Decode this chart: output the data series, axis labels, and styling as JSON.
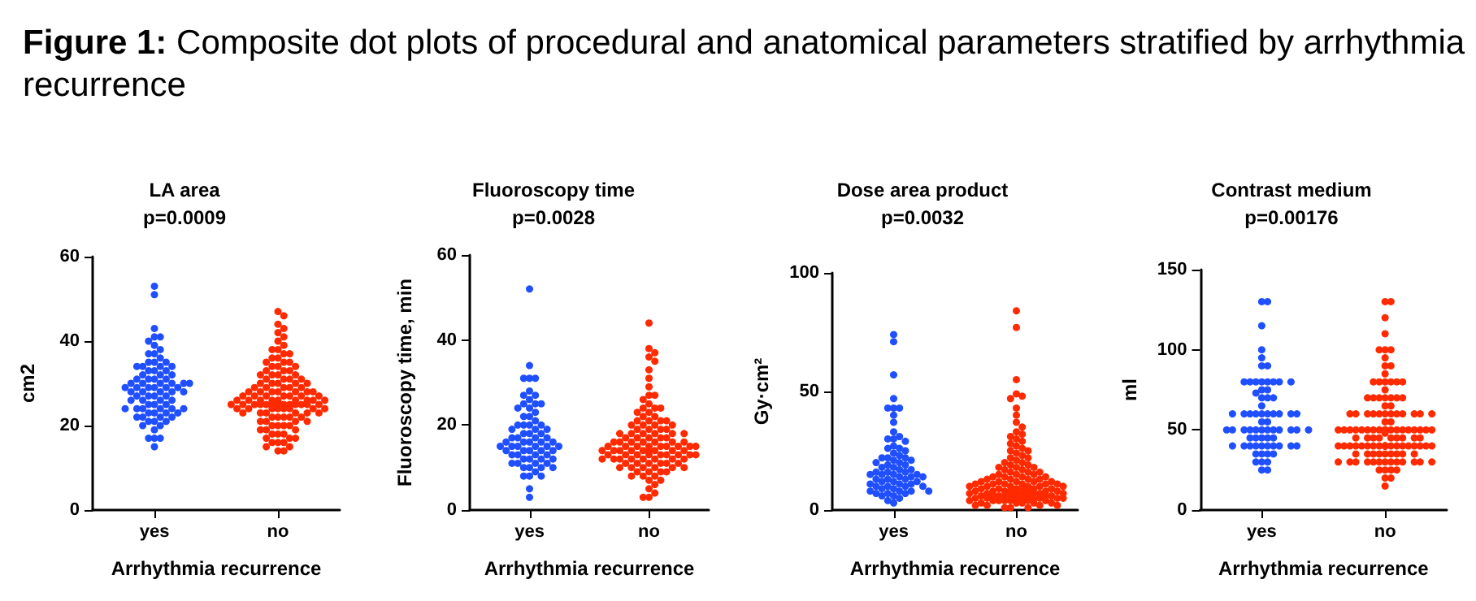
{
  "chart_data": [
    {
      "type": "scatter",
      "title": "LA area",
      "subtitle": "p=0.0009",
      "annotations": [
        "Figure 1: Composite dot plots of procedural and anatomical parameters stratified by arrhythmia recurrence"
      ],
      "xlabel": "Arrhythmia recurrence",
      "ylabel": "cm2",
      "categories": [
        "yes",
        "no"
      ],
      "ylim": [
        0,
        60
      ],
      "yticks": [
        0,
        20,
        40,
        60
      ],
      "marker": "circle",
      "series": [
        {
          "color": "#1f4fff",
          "x": [
            "yes",
            "yes",
            "yes",
            "yes",
            "yes",
            "yes",
            "yes",
            "yes",
            "yes",
            "yes",
            "yes",
            "yes",
            "yes",
            "yes",
            "yes",
            "yes",
            "yes",
            "yes",
            "yes",
            "yes",
            "yes",
            "yes",
            "yes",
            "yes",
            "yes",
            "yes",
            "yes",
            "yes",
            "yes",
            "yes",
            "yes",
            "yes",
            "yes",
            "yes",
            "yes",
            "yes",
            "yes",
            "yes",
            "yes",
            "yes",
            "yes",
            "yes",
            "yes",
            "yes",
            "yes",
            "yes",
            "yes",
            "yes",
            "yes",
            "yes",
            "yes",
            "yes",
            "yes",
            "yes",
            "yes",
            "yes",
            "yes",
            "yes",
            "yes",
            "yes",
            "yes",
            "yes",
            "yes",
            "yes",
            "yes",
            "yes",
            "yes",
            "yes",
            "yes",
            "yes",
            "yes",
            "yes",
            "yes",
            "yes",
            "yes",
            "yes",
            "yes",
            "yes",
            "yes",
            "yes"
          ],
          "values": [
            53,
            51,
            43,
            41,
            41,
            40,
            39,
            38,
            37,
            37,
            36,
            35,
            35,
            35,
            34,
            34,
            34,
            34,
            33,
            33,
            33,
            32,
            32,
            32,
            31,
            31,
            31,
            31,
            30,
            30,
            30,
            30,
            30,
            29,
            29,
            29,
            29,
            29,
            29,
            28,
            28,
            28,
            28,
            28,
            27,
            27,
            27,
            26,
            26,
            26,
            26,
            25,
            25,
            25,
            24,
            24,
            24,
            24,
            24,
            24,
            23,
            23,
            23,
            22,
            22,
            22,
            21,
            21,
            21,
            20,
            20,
            19,
            17,
            17,
            17,
            15,
            22,
            23,
            27,
            30
          ]
        },
        {
          "color": "#ff2a00",
          "x": [
            "no",
            "no",
            "no",
            "no",
            "no",
            "no",
            "no",
            "no",
            "no",
            "no",
            "no",
            "no",
            "no",
            "no",
            "no",
            "no",
            "no",
            "no",
            "no",
            "no",
            "no",
            "no",
            "no",
            "no",
            "no",
            "no",
            "no",
            "no",
            "no",
            "no",
            "no",
            "no",
            "no",
            "no",
            "no",
            "no",
            "no",
            "no",
            "no",
            "no",
            "no",
            "no",
            "no",
            "no",
            "no",
            "no",
            "no",
            "no",
            "no",
            "no",
            "no",
            "no",
            "no",
            "no",
            "no",
            "no",
            "no",
            "no",
            "no",
            "no",
            "no",
            "no",
            "no",
            "no",
            "no",
            "no",
            "no",
            "no",
            "no",
            "no",
            "no",
            "no",
            "no",
            "no",
            "no",
            "no",
            "no",
            "no",
            "no",
            "no",
            "no",
            "no",
            "no",
            "no",
            "no",
            "no",
            "no",
            "no",
            "no",
            "no",
            "no",
            "no",
            "no",
            "no",
            "no",
            "no",
            "no",
            "no",
            "no",
            "no",
            "no",
            "no",
            "no",
            "no",
            "no",
            "no",
            "no",
            "no",
            "no",
            "no",
            "no",
            "no",
            "no",
            "no",
            "no",
            "no",
            "no",
            "no",
            "no",
            "no"
          ],
          "values": [
            47,
            46,
            44,
            43,
            42,
            41,
            40,
            39,
            38,
            38,
            37,
            37,
            36,
            36,
            35,
            35,
            35,
            34,
            34,
            34,
            33,
            33,
            33,
            32,
            32,
            32,
            32,
            31,
            31,
            31,
            31,
            30,
            30,
            30,
            30,
            30,
            29,
            29,
            29,
            29,
            29,
            28,
            28,
            28,
            28,
            28,
            28,
            27,
            27,
            27,
            27,
            27,
            27,
            26,
            26,
            26,
            26,
            26,
            26,
            26,
            25,
            25,
            25,
            25,
            25,
            25,
            25,
            25,
            25,
            25,
            25,
            24,
            24,
            24,
            24,
            24,
            24,
            24,
            23,
            23,
            23,
            23,
            23,
            23,
            22,
            22,
            22,
            22,
            22,
            21,
            21,
            21,
            21,
            20,
            20,
            20,
            20,
            19,
            19,
            19,
            18,
            18,
            18,
            17,
            17,
            17,
            16,
            16,
            16,
            15,
            15,
            14,
            14,
            26,
            25,
            24,
            27,
            28,
            25,
            26
          ]
        }
      ]
    },
    {
      "type": "scatter",
      "title": "Fluoroscopy time",
      "subtitle": "p=0.0028",
      "xlabel": "Arrhythmia recurrence",
      "ylabel": "Fluoroscopy time, min",
      "categories": [
        "yes",
        "no"
      ],
      "ylim": [
        0,
        60
      ],
      "yticks": [
        0,
        20,
        40,
        60
      ],
      "marker": "circle",
      "series": [
        {
          "color": "#1f4fff",
          "x": [
            "yes",
            "yes",
            "yes",
            "yes",
            "yes",
            "yes",
            "yes",
            "yes",
            "yes",
            "yes",
            "yes",
            "yes",
            "yes",
            "yes",
            "yes",
            "yes",
            "yes",
            "yes",
            "yes",
            "yes",
            "yes",
            "yes",
            "yes",
            "yes",
            "yes",
            "yes",
            "yes",
            "yes",
            "yes",
            "yes",
            "yes",
            "yes",
            "yes",
            "yes",
            "yes",
            "yes",
            "yes",
            "yes",
            "yes",
            "yes",
            "yes",
            "yes",
            "yes",
            "yes",
            "yes",
            "yes",
            "yes",
            "yes",
            "yes",
            "yes",
            "yes",
            "yes",
            "yes",
            "yes",
            "yes",
            "yes",
            "yes",
            "yes",
            "yes",
            "yes",
            "yes",
            "yes",
            "yes",
            "yes",
            "yes",
            "yes",
            "yes",
            "yes",
            "yes",
            "yes"
          ],
          "values": [
            52,
            34,
            31,
            31,
            31,
            28,
            27,
            27,
            26,
            25,
            25,
            25,
            24,
            24,
            23,
            22,
            22,
            21,
            20,
            20,
            20,
            20,
            19,
            19,
            19,
            18,
            18,
            18,
            17,
            17,
            17,
            17,
            16,
            16,
            16,
            16,
            16,
            15,
            15,
            15,
            15,
            15,
            15,
            14,
            14,
            14,
            14,
            14,
            13,
            13,
            13,
            13,
            12,
            12,
            12,
            12,
            11,
            11,
            11,
            11,
            10,
            10,
            10,
            10,
            9,
            8,
            8,
            8,
            5,
            3
          ]
        },
        {
          "color": "#ff2a00",
          "x": [
            "no",
            "no",
            "no",
            "no",
            "no",
            "no",
            "no",
            "no",
            "no",
            "no",
            "no",
            "no",
            "no",
            "no",
            "no",
            "no",
            "no",
            "no",
            "no",
            "no",
            "no",
            "no",
            "no",
            "no",
            "no",
            "no",
            "no",
            "no",
            "no",
            "no",
            "no",
            "no",
            "no",
            "no",
            "no",
            "no",
            "no",
            "no",
            "no",
            "no",
            "no",
            "no",
            "no",
            "no",
            "no",
            "no",
            "no",
            "no",
            "no",
            "no",
            "no",
            "no",
            "no",
            "no",
            "no",
            "no",
            "no",
            "no",
            "no",
            "no",
            "no",
            "no",
            "no",
            "no",
            "no",
            "no",
            "no",
            "no",
            "no",
            "no",
            "no",
            "no",
            "no",
            "no",
            "no",
            "no",
            "no",
            "no",
            "no",
            "no",
            "no",
            "no",
            "no",
            "no",
            "no",
            "no",
            "no",
            "no",
            "no",
            "no",
            "no",
            "no",
            "no",
            "no",
            "no",
            "no",
            "no",
            "no",
            "no",
            "no",
            "no",
            "no",
            "no",
            "no",
            "no",
            "no",
            "no",
            "no",
            "no",
            "no"
          ],
          "values": [
            44,
            38,
            37,
            36,
            35,
            33,
            31,
            29,
            27,
            27,
            26,
            25,
            24,
            24,
            24,
            23,
            23,
            22,
            22,
            21,
            21,
            21,
            21,
            20,
            20,
            20,
            20,
            19,
            19,
            19,
            19,
            18,
            18,
            18,
            18,
            18,
            18,
            17,
            17,
            17,
            17,
            17,
            16,
            16,
            16,
            16,
            16,
            16,
            16,
            15,
            15,
            15,
            15,
            15,
            15,
            15,
            15,
            14,
            14,
            14,
            14,
            14,
            14,
            14,
            14,
            13,
            13,
            13,
            13,
            13,
            13,
            13,
            13,
            12,
            12,
            12,
            12,
            12,
            12,
            12,
            11,
            11,
            11,
            11,
            11,
            11,
            10,
            10,
            10,
            10,
            10,
            10,
            9,
            9,
            9,
            9,
            8,
            8,
            8,
            7,
            7,
            6,
            5,
            4,
            3,
            3,
            12,
            13,
            14,
            15
          ]
        }
      ]
    },
    {
      "type": "scatter",
      "title": "Dose area product",
      "subtitle": "p=0.0032",
      "xlabel": "Arrhythmia recurrence",
      "ylabel": "Gy·cm²",
      "categories": [
        "yes",
        "no"
      ],
      "ylim": [
        0,
        100
      ],
      "yticks": [
        0,
        50,
        100
      ],
      "marker": "circle",
      "series": [
        {
          "color": "#1f4fff",
          "x": [
            "yes",
            "yes",
            "yes",
            "yes",
            "yes",
            "yes",
            "yes",
            "yes",
            "yes",
            "yes",
            "yes",
            "yes",
            "yes",
            "yes",
            "yes",
            "yes",
            "yes",
            "yes",
            "yes",
            "yes",
            "yes",
            "yes",
            "yes",
            "yes",
            "yes",
            "yes",
            "yes",
            "yes",
            "yes",
            "yes",
            "yes",
            "yes",
            "yes",
            "yes",
            "yes",
            "yes",
            "yes",
            "yes",
            "yes",
            "yes",
            "yes",
            "yes",
            "yes",
            "yes",
            "yes",
            "yes",
            "yes",
            "yes",
            "yes",
            "yes",
            "yes",
            "yes",
            "yes",
            "yes",
            "yes",
            "yes",
            "yes",
            "yes",
            "yes",
            "yes",
            "yes",
            "yes",
            "yes",
            "yes",
            "yes",
            "yes",
            "yes",
            "yes",
            "yes",
            "yes"
          ],
          "values": [
            74,
            71,
            57,
            47,
            43,
            43,
            43,
            40,
            37,
            33,
            31,
            30,
            30,
            29,
            27,
            26,
            26,
            25,
            24,
            23,
            22,
            22,
            22,
            21,
            21,
            20,
            20,
            19,
            19,
            18,
            18,
            17,
            17,
            16,
            16,
            16,
            15,
            15,
            15,
            15,
            14,
            14,
            14,
            13,
            13,
            13,
            12,
            12,
            12,
            11,
            11,
            11,
            10,
            10,
            10,
            10,
            9,
            9,
            8,
            8,
            8,
            8,
            7,
            7,
            7,
            6,
            6,
            5,
            4,
            3
          ]
        },
        {
          "color": "#ff2a00",
          "x": [
            "no",
            "no",
            "no",
            "no",
            "no",
            "no",
            "no",
            "no",
            "no",
            "no",
            "no",
            "no",
            "no",
            "no",
            "no",
            "no",
            "no",
            "no",
            "no",
            "no",
            "no",
            "no",
            "no",
            "no",
            "no",
            "no",
            "no",
            "no",
            "no",
            "no",
            "no",
            "no",
            "no",
            "no",
            "no",
            "no",
            "no",
            "no",
            "no",
            "no",
            "no",
            "no",
            "no",
            "no",
            "no",
            "no",
            "no",
            "no",
            "no",
            "no",
            "no",
            "no",
            "no",
            "no",
            "no",
            "no",
            "no",
            "no",
            "no",
            "no",
            "no",
            "no",
            "no",
            "no",
            "no",
            "no",
            "no",
            "no",
            "no",
            "no",
            "no",
            "no",
            "no",
            "no",
            "no",
            "no",
            "no",
            "no",
            "no",
            "no",
            "no",
            "no",
            "no",
            "no",
            "no",
            "no",
            "no",
            "no",
            "no",
            "no",
            "no",
            "no",
            "no",
            "no",
            "no",
            "no",
            "no",
            "no",
            "no",
            "no",
            "no",
            "no",
            "no",
            "no",
            "no",
            "no",
            "no",
            "no",
            "no",
            "no",
            "no",
            "no",
            "no",
            "no",
            "no",
            "no",
            "no",
            "no",
            "no",
            "no"
          ],
          "values": [
            84,
            77,
            55,
            49,
            48,
            47,
            43,
            40,
            37,
            35,
            33,
            32,
            31,
            30,
            29,
            28,
            27,
            26,
            25,
            25,
            24,
            23,
            22,
            22,
            21,
            20,
            20,
            19,
            19,
            18,
            18,
            18,
            17,
            17,
            16,
            16,
            16,
            15,
            15,
            15,
            14,
            14,
            14,
            14,
            13,
            13,
            13,
            13,
            12,
            12,
            12,
            12,
            11,
            11,
            11,
            11,
            11,
            10,
            10,
            10,
            10,
            10,
            9,
            9,
            9,
            9,
            9,
            8,
            8,
            8,
            8,
            8,
            8,
            7,
            7,
            7,
            7,
            7,
            7,
            6,
            6,
            6,
            6,
            6,
            6,
            6,
            5,
            5,
            5,
            5,
            5,
            5,
            5,
            4,
            4,
            4,
            4,
            4,
            4,
            3,
            3,
            3,
            3,
            3,
            2,
            2,
            2,
            2,
            1,
            1,
            1,
            10,
            11,
            12,
            8,
            9,
            7,
            6,
            5,
            4
          ]
        }
      ]
    },
    {
      "type": "scatter",
      "title": "Contrast medium",
      "subtitle": "p=0.00176",
      "xlabel": "Arrhythmia recurrence",
      "ylabel": "ml",
      "categories": [
        "yes",
        "no"
      ],
      "ylim": [
        0,
        150
      ],
      "yticks": [
        0,
        50,
        100,
        150
      ],
      "marker": "circle",
      "series": [
        {
          "color": "#1f4fff",
          "x": [
            "yes",
            "yes",
            "yes",
            "yes",
            "yes",
            "yes",
            "yes",
            "yes",
            "yes",
            "yes",
            "yes",
            "yes",
            "yes",
            "yes",
            "yes",
            "yes",
            "yes",
            "yes",
            "yes",
            "yes",
            "yes",
            "yes",
            "yes",
            "yes",
            "yes",
            "yes",
            "yes",
            "yes",
            "yes",
            "yes",
            "yes",
            "yes",
            "yes",
            "yes",
            "yes",
            "yes",
            "yes",
            "yes",
            "yes",
            "yes",
            "yes",
            "yes",
            "yes",
            "yes",
            "yes",
            "yes",
            "yes",
            "yes",
            "yes",
            "yes",
            "yes",
            "yes",
            "yes",
            "yes",
            "yes",
            "yes",
            "yes",
            "yes",
            "yes",
            "yes",
            "yes",
            "yes",
            "yes",
            "yes",
            "yes",
            "yes",
            "yes",
            "yes",
            "yes",
            "yes"
          ],
          "values": [
            130,
            130,
            115,
            100,
            95,
            90,
            90,
            80,
            80,
            80,
            80,
            80,
            80,
            80,
            80,
            75,
            75,
            73,
            70,
            70,
            70,
            65,
            60,
            60,
            60,
            60,
            60,
            60,
            60,
            60,
            60,
            60,
            55,
            55,
            50,
            50,
            50,
            50,
            50,
            50,
            50,
            50,
            50,
            50,
            50,
            50,
            45,
            45,
            45,
            45,
            45,
            40,
            40,
            40,
            40,
            40,
            40,
            40,
            40,
            40,
            40,
            35,
            35,
            35,
            35,
            30,
            30,
            30,
            25,
            25
          ]
        },
        {
          "color": "#ff2a00",
          "x": [
            "no",
            "no",
            "no",
            "no",
            "no",
            "no",
            "no",
            "no",
            "no",
            "no",
            "no",
            "no",
            "no",
            "no",
            "no",
            "no",
            "no",
            "no",
            "no",
            "no",
            "no",
            "no",
            "no",
            "no",
            "no",
            "no",
            "no",
            "no",
            "no",
            "no",
            "no",
            "no",
            "no",
            "no",
            "no",
            "no",
            "no",
            "no",
            "no",
            "no",
            "no",
            "no",
            "no",
            "no",
            "no",
            "no",
            "no",
            "no",
            "no",
            "no",
            "no",
            "no",
            "no",
            "no",
            "no",
            "no",
            "no",
            "no",
            "no",
            "no",
            "no",
            "no",
            "no",
            "no",
            "no",
            "no",
            "no",
            "no",
            "no",
            "no",
            "no",
            "no",
            "no",
            "no",
            "no",
            "no",
            "no",
            "no",
            "no",
            "no",
            "no",
            "no",
            "no",
            "no",
            "no",
            "no",
            "no",
            "no",
            "no",
            "no",
            "no",
            "no",
            "no",
            "no",
            "no",
            "no",
            "no",
            "no",
            "no",
            "no",
            "no",
            "no",
            "no",
            "no",
            "no",
            "no",
            "no",
            "no",
            "no",
            "no",
            "no",
            "no",
            "no",
            "no",
            "no",
            "no",
            "no",
            "no",
            "no",
            "no"
          ],
          "values": [
            130,
            130,
            120,
            110,
            100,
            100,
            100,
            95,
            90,
            90,
            85,
            80,
            80,
            80,
            80,
            80,
            80,
            75,
            70,
            70,
            70,
            70,
            70,
            70,
            65,
            65,
            60,
            60,
            60,
            60,
            60,
            60,
            60,
            60,
            60,
            60,
            55,
            50,
            50,
            50,
            50,
            50,
            50,
            50,
            50,
            50,
            50,
            50,
            50,
            50,
            50,
            48,
            45,
            45,
            45,
            45,
            45,
            45,
            40,
            40,
            40,
            40,
            40,
            40,
            40,
            40,
            40,
            40,
            40,
            40,
            40,
            40,
            40,
            40,
            35,
            35,
            35,
            35,
            35,
            35,
            30,
            30,
            30,
            30,
            30,
            30,
            30,
            30,
            30,
            30,
            25,
            25,
            25,
            20,
            20,
            15,
            50,
            40,
            30,
            60,
            45,
            55,
            35,
            40,
            50,
            30,
            40,
            50,
            60,
            45,
            35,
            40,
            50,
            30,
            25,
            40,
            45,
            50,
            35,
            70
          ]
        }
      ]
    }
  ]
}
